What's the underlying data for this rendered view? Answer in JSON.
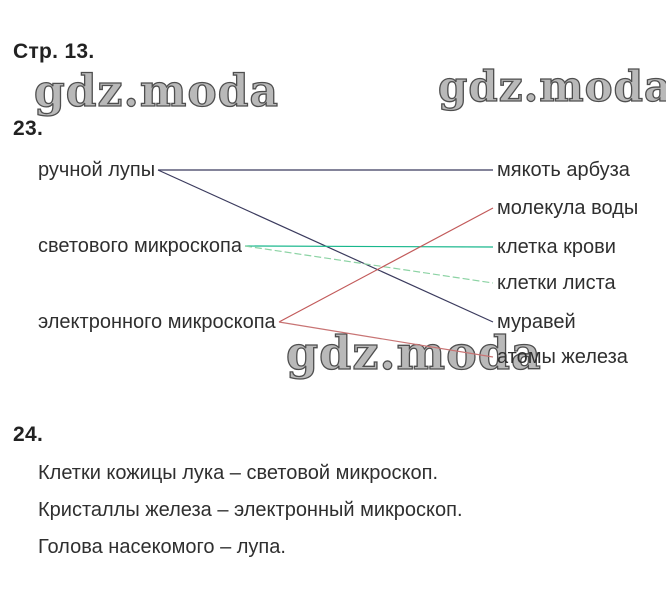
{
  "page": {
    "title": "Стр. 13.",
    "watermark": "gdz.moda"
  },
  "task23": {
    "number": "23.",
    "left_items": [
      "ручной лупы",
      "светового микроскопа",
      "электронного микроскопа"
    ],
    "right_items": [
      "мякоть арбуза",
      "молекула воды",
      "клетка крови",
      "клетки листа",
      "муравей",
      "атомы железа"
    ],
    "connections": [
      {
        "from": 0,
        "to": 0,
        "color": "#3b3b5e",
        "dash": ""
      },
      {
        "from": 0,
        "to": 4,
        "color": "#3b3b5e",
        "dash": ""
      },
      {
        "from": 1,
        "to": 2,
        "color": "#18b78c",
        "dash": ""
      },
      {
        "from": 1,
        "to": 3,
        "color": "#8cd3a4",
        "dash": "7 3"
      },
      {
        "from": 2,
        "to": 1,
        "color": "#c25a5a",
        "dash": ""
      },
      {
        "from": 2,
        "to": 5,
        "color": "#c87474",
        "dash": ""
      }
    ]
  },
  "task24": {
    "number": "24.",
    "answers": [
      "Клетки кожицы лука – световой микроскоп.",
      "Кристаллы железа – электронный микроскоп.",
      "Голова насекомого – лупа."
    ]
  }
}
